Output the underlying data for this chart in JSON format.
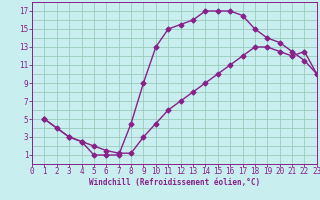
{
  "bg_color": "#c8eef0",
  "grid_color": "#99ccbb",
  "line_color": "#882288",
  "xlabel": "Windchill (Refroidissement éolien,°C)",
  "xlim": [
    0,
    23
  ],
  "ylim": [
    0,
    18
  ],
  "xticks": [
    0,
    1,
    2,
    3,
    4,
    5,
    6,
    7,
    8,
    9,
    10,
    11,
    12,
    13,
    14,
    15,
    16,
    17,
    18,
    19,
    20,
    21,
    22,
    23
  ],
  "yticks": [
    1,
    3,
    5,
    7,
    9,
    11,
    13,
    15,
    17
  ],
  "curve1_x": [
    1,
    2,
    3,
    4,
    5,
    6,
    7,
    8,
    9,
    10,
    11,
    12,
    13,
    14,
    15,
    16,
    17,
    18,
    19,
    20,
    21,
    22,
    23
  ],
  "curve1_y": [
    5,
    4,
    3,
    2.5,
    1,
    1,
    1,
    4.5,
    9,
    13,
    15,
    15.5,
    16,
    17,
    17,
    17,
    16.5,
    15,
    14,
    13.5,
    12.5,
    11.5,
    10
  ],
  "curve2_x": [
    1,
    3,
    4,
    5,
    6,
    7,
    8,
    9,
    10,
    11,
    12,
    13,
    14,
    15,
    16,
    17,
    18,
    19,
    20,
    21,
    22,
    23
  ],
  "curve2_y": [
    5,
    3,
    2.5,
    2,
    1.5,
    1.2,
    1.2,
    3,
    4.5,
    6,
    7,
    8,
    9,
    10,
    11,
    12,
    13,
    13,
    12.5,
    12,
    12.5,
    10
  ],
  "marker_size": 2.5,
  "line_width": 1.0,
  "tick_fontsize": 5.5,
  "xlabel_fontsize": 5.5
}
